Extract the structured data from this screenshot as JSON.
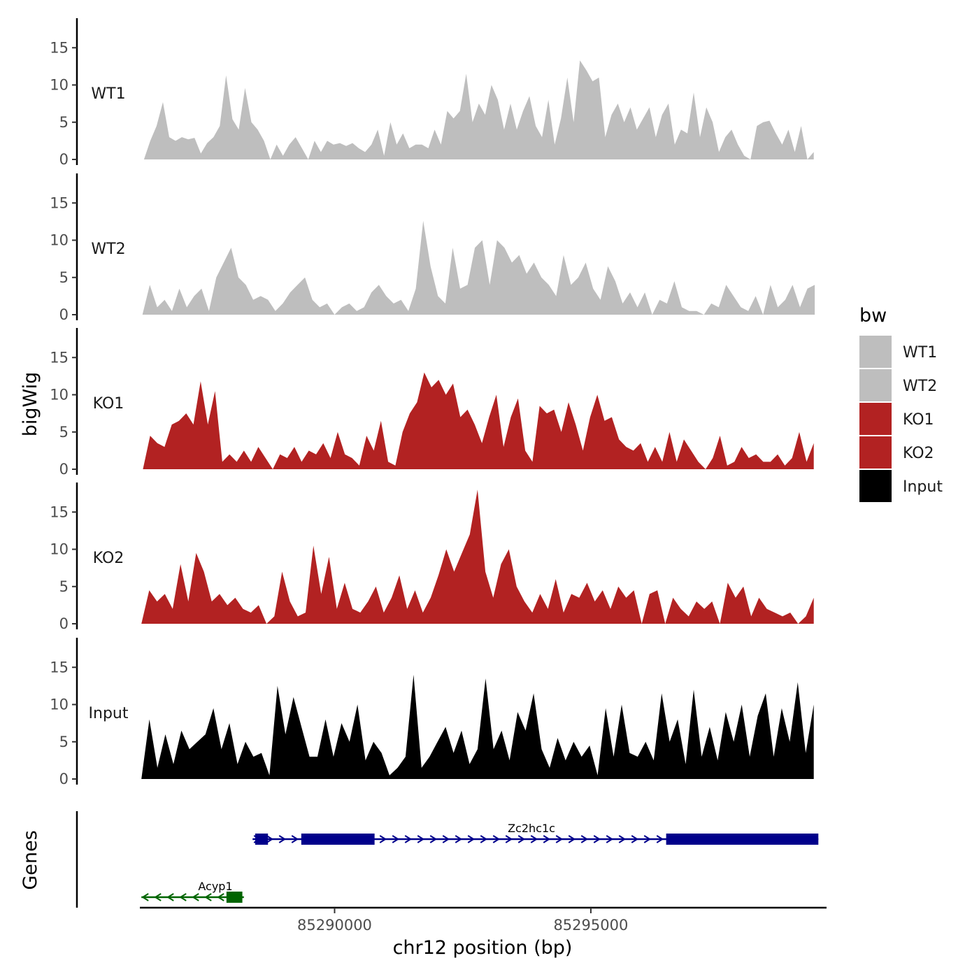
{
  "chart_data": {
    "type": "area",
    "chromosome": "chr12",
    "ylabel": "bigWig",
    "xlabel": "chr12 position (bp)",
    "genes_label": "Genes",
    "xlim": [
      85286200,
      85299600
    ],
    "xticks": [
      85290000,
      85295000
    ],
    "xtick_labels": [
      "85290000",
      "85295000"
    ],
    "ylim": [
      0,
      18.5
    ],
    "yticks": [
      0,
      5,
      10,
      15
    ],
    "ytick_labels": [
      "0",
      "5",
      "10",
      "15"
    ],
    "colors": {
      "WT1": "#bebebe",
      "WT2": "#bebebe",
      "KO1": "#b22222",
      "KO2": "#b22222",
      "Input": "#000000"
    },
    "legend": {
      "title": "bw",
      "position": "right",
      "entries": [
        "WT1",
        "WT2",
        "KO1",
        "KO2",
        "Input"
      ]
    },
    "series": [
      {
        "name": "WT1",
        "x_start": 85286280,
        "x_end": 85299350,
        "values": [
          0.0,
          2.5,
          4.5,
          7.7,
          3.0,
          2.5,
          3.0,
          2.7,
          2.9,
          0.8,
          2.2,
          3.0,
          4.5,
          11.3,
          5.4,
          4.0,
          9.6,
          5.0,
          4.0,
          2.5,
          0.0,
          2.0,
          0.5,
          2.0,
          3.0,
          1.5,
          0.0,
          2.5,
          1.0,
          2.5,
          2.0,
          2.2,
          1.8,
          2.2,
          1.5,
          1.0,
          2.0,
          4.0,
          0.5,
          5.0,
          2.0,
          3.5,
          1.5,
          2.0,
          2.0,
          1.5,
          4.0,
          2.0,
          6.5,
          5.5,
          6.5,
          11.5,
          5.0,
          7.5,
          6.0,
          10.0,
          8.0,
          4.0,
          7.5,
          4.0,
          6.5,
          8.5,
          4.5,
          3.0,
          8.0,
          2.0,
          5.5,
          11.0,
          5.0,
          13.3,
          12.0,
          10.5,
          11.0,
          3.0,
          6.0,
          7.5,
          5.0,
          7.0,
          4.0,
          5.5,
          7.0,
          3.0,
          6.0,
          7.5,
          2.0,
          4.0,
          3.5,
          9.0,
          3.0,
          7.0,
          5.0,
          1.0,
          3.0,
          4.0,
          2.0,
          0.5,
          0.0,
          4.5,
          5.0,
          5.2,
          3.5,
          2.0,
          4.0,
          1.0,
          4.5,
          0.0,
          1.0
        ]
      },
      {
        "name": "WT2",
        "x_start": 85286250,
        "x_end": 85299370,
        "values": [
          0.0,
          4.0,
          1.0,
          2.0,
          0.5,
          3.5,
          1.0,
          2.5,
          3.5,
          0.5,
          5.0,
          7.0,
          9.0,
          5.0,
          4.0,
          2.0,
          2.5,
          2.0,
          0.5,
          1.5,
          3.0,
          4.0,
          5.0,
          2.0,
          1.0,
          1.5,
          0.0,
          1.0,
          1.5,
          0.5,
          1.0,
          3.0,
          4.0,
          2.5,
          1.5,
          2.0,
          0.5,
          3.5,
          12.6,
          6.5,
          2.5,
          1.5,
          9.0,
          3.5,
          4.0,
          9.0,
          10.0,
          4.0,
          10.0,
          9.0,
          7.0,
          8.0,
          5.5,
          7.0,
          5.0,
          4.0,
          2.5,
          8.0,
          4.0,
          5.0,
          7.0,
          3.5,
          2.0,
          6.5,
          4.5,
          1.5,
          3.0,
          1.0,
          3.0,
          0.0,
          2.0,
          1.5,
          4.5,
          1.0,
          0.5,
          0.5,
          0.0,
          1.5,
          1.0,
          4.0,
          2.5,
          1.0,
          0.5,
          2.5,
          0.0,
          4.0,
          1.0,
          2.0,
          4.0,
          1.0,
          3.5,
          4.0
        ]
      },
      {
        "name": "KO1",
        "x_start": 85286260,
        "x_end": 85299350,
        "values": [
          0.0,
          4.5,
          3.5,
          3.0,
          6.0,
          6.5,
          7.5,
          6.0,
          11.8,
          6.0,
          10.5,
          1.0,
          2.0,
          1.0,
          2.5,
          1.0,
          3.0,
          1.5,
          0.0,
          2.0,
          1.5,
          3.0,
          1.0,
          2.5,
          2.0,
          3.5,
          1.5,
          5.0,
          2.0,
          1.5,
          0.5,
          4.5,
          2.5,
          6.5,
          1.0,
          0.5,
          5.0,
          7.5,
          9.0,
          13.0,
          11.0,
          12.0,
          10.0,
          11.5,
          7.0,
          8.0,
          6.0,
          3.5,
          7.0,
          10.0,
          3.0,
          7.0,
          9.5,
          2.5,
          1.0,
          8.5,
          7.5,
          8.0,
          5.0,
          9.0,
          6.0,
          2.5,
          7.0,
          10.0,
          6.5,
          7.0,
          4.0,
          3.0,
          2.5,
          3.5,
          1.0,
          3.0,
          1.0,
          5.0,
          1.0,
          4.0,
          2.5,
          1.0,
          0.0,
          1.5,
          4.5,
          0.5,
          1.0,
          3.0,
          1.5,
          2.0,
          1.0,
          1.0,
          2.0,
          0.5,
          1.5,
          5.0,
          1.0,
          3.5
        ]
      },
      {
        "name": "KO2",
        "x_start": 85286230,
        "x_end": 85299350,
        "values": [
          0.0,
          4.5,
          3.0,
          4.0,
          2.0,
          8.0,
          3.0,
          9.5,
          7.0,
          3.0,
          4.0,
          2.5,
          3.5,
          2.0,
          1.5,
          2.5,
          0.0,
          1.0,
          7.0,
          3.0,
          1.0,
          1.5,
          10.5,
          4.0,
          9.0,
          2.0,
          5.5,
          2.0,
          1.5,
          3.0,
          5.0,
          1.5,
          3.5,
          6.5,
          2.0,
          4.5,
          1.5,
          3.5,
          6.5,
          10.0,
          7.0,
          9.5,
          12.0,
          18.0,
          7.0,
          3.5,
          8.0,
          10.0,
          5.0,
          3.0,
          1.5,
          4.0,
          2.0,
          6.0,
          1.5,
          4.0,
          3.5,
          5.5,
          3.0,
          4.5,
          2.0,
          5.0,
          3.5,
          4.5,
          0.0,
          4.0,
          4.5,
          0.0,
          3.5,
          2.0,
          1.0,
          3.0,
          2.0,
          3.0,
          0.0,
          5.5,
          3.5,
          5.0,
          1.0,
          3.5,
          2.0,
          1.5,
          1.0,
          1.5,
          0.0,
          1.0,
          3.5
        ]
      },
      {
        "name": "Input",
        "x_start": 85286230,
        "x_end": 85299350,
        "values": [
          0.0,
          8.0,
          1.5,
          6.0,
          2.0,
          6.5,
          4.0,
          5.0,
          6.0,
          9.5,
          4.0,
          7.5,
          2.0,
          5.0,
          3.0,
          3.5,
          0.5,
          12.5,
          6.0,
          11.0,
          7.0,
          3.0,
          3.0,
          8.0,
          3.0,
          7.5,
          5.0,
          10.0,
          2.5,
          5.0,
          3.5,
          0.5,
          1.5,
          3.0,
          14.0,
          1.5,
          3.0,
          5.0,
          7.0,
          3.5,
          6.5,
          2.0,
          4.0,
          13.5,
          4.0,
          6.5,
          2.5,
          9.0,
          6.5,
          11.5,
          4.0,
          1.5,
          5.5,
          2.5,
          5.0,
          3.0,
          4.5,
          0.5,
          9.5,
          3.0,
          10.0,
          3.5,
          3.0,
          5.0,
          2.5,
          11.5,
          5.0,
          8.0,
          2.0,
          12.0,
          3.0,
          7.0,
          2.5,
          9.0,
          5.0,
          10.0,
          3.0,
          8.5,
          11.5,
          3.0,
          9.5,
          5.0,
          13.0,
          3.5,
          10.0
        ]
      }
    ],
    "genes": [
      {
        "name": "Zc2hc1c",
        "strand": "+",
        "color": "#00008b",
        "start": 85288400,
        "end": 85299440,
        "exons": [
          [
            85288450,
            85288700
          ],
          [
            85289350,
            85290780
          ],
          [
            85296470,
            85299440
          ]
        ]
      },
      {
        "name": "Acyp1",
        "strand": "-",
        "color": "#006400",
        "start": 85286230,
        "end": 85288230,
        "exons": [
          [
            85287890,
            85288200
          ]
        ]
      }
    ]
  }
}
